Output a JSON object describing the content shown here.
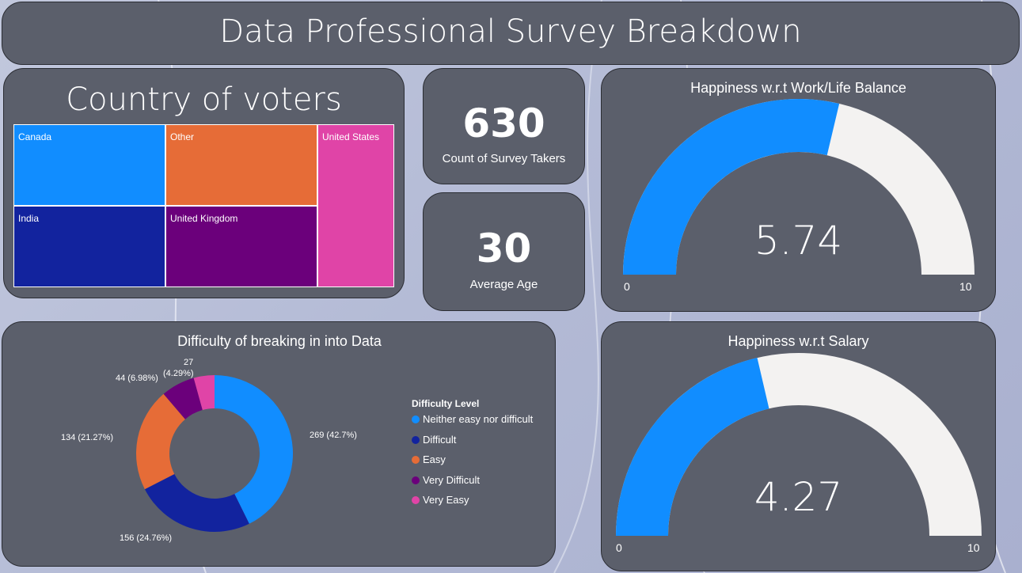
{
  "title": "Data Professional Survey Breakdown",
  "kpis": {
    "count_value": "630",
    "count_label": "Count of Survey Takers",
    "age_value": "30",
    "age_label": "Average Age"
  },
  "colors": {
    "blue": "#118dff",
    "navy": "#12239e",
    "orange": "#e66c37",
    "purple": "#6b007b",
    "pink": "#e044a7",
    "track": "#f3f2f1",
    "panel": "#5b5f6b"
  },
  "chart_data": [
    {
      "type": "treemap",
      "title": "Country of voters",
      "items": [
        {
          "label": "Canada",
          "color": "#118dff"
        },
        {
          "label": "Other",
          "color": "#e66c37"
        },
        {
          "label": "United States",
          "color": "#e044a7"
        },
        {
          "label": "India",
          "color": "#12239e"
        },
        {
          "label": "United Kingdom",
          "color": "#6b007b"
        }
      ]
    },
    {
      "type": "gauge",
      "title": "Happiness w.r.t Work/Life Balance",
      "value": 5.74,
      "value_label": "5.74",
      "min": 0,
      "max": 10,
      "min_label": "0",
      "max_label": "10"
    },
    {
      "type": "gauge",
      "title": "Happiness w.r.t Salary",
      "value": 4.27,
      "value_label": "4.27",
      "min": 0,
      "max": 10,
      "min_label": "0",
      "max_label": "10"
    },
    {
      "type": "pie",
      "title": "Difficulty of breaking in into Data",
      "legend_title": "Difficulty Level",
      "legend_position": "right",
      "slices": [
        {
          "label": "Neither easy nor difficult",
          "value": 269,
          "percent": "42.7%",
          "data_label": "269 (42.7%)",
          "color": "#118dff"
        },
        {
          "label": "Difficult",
          "value": 156,
          "percent": "24.76%",
          "data_label": "156 (24.76%)",
          "color": "#12239e"
        },
        {
          "label": "Easy",
          "value": 134,
          "percent": "21.27%",
          "data_label": "134 (21.27%)",
          "color": "#e66c37"
        },
        {
          "label": "Very Difficult",
          "value": 44,
          "percent": "6.98%",
          "data_label": "44 (6.98%)",
          "color": "#6b007b"
        },
        {
          "label": "Very Easy",
          "value": 27,
          "percent": "4.29%",
          "data_label_count": "27",
          "data_label_pct": "(4.29%)",
          "color": "#e044a7"
        }
      ]
    }
  ]
}
